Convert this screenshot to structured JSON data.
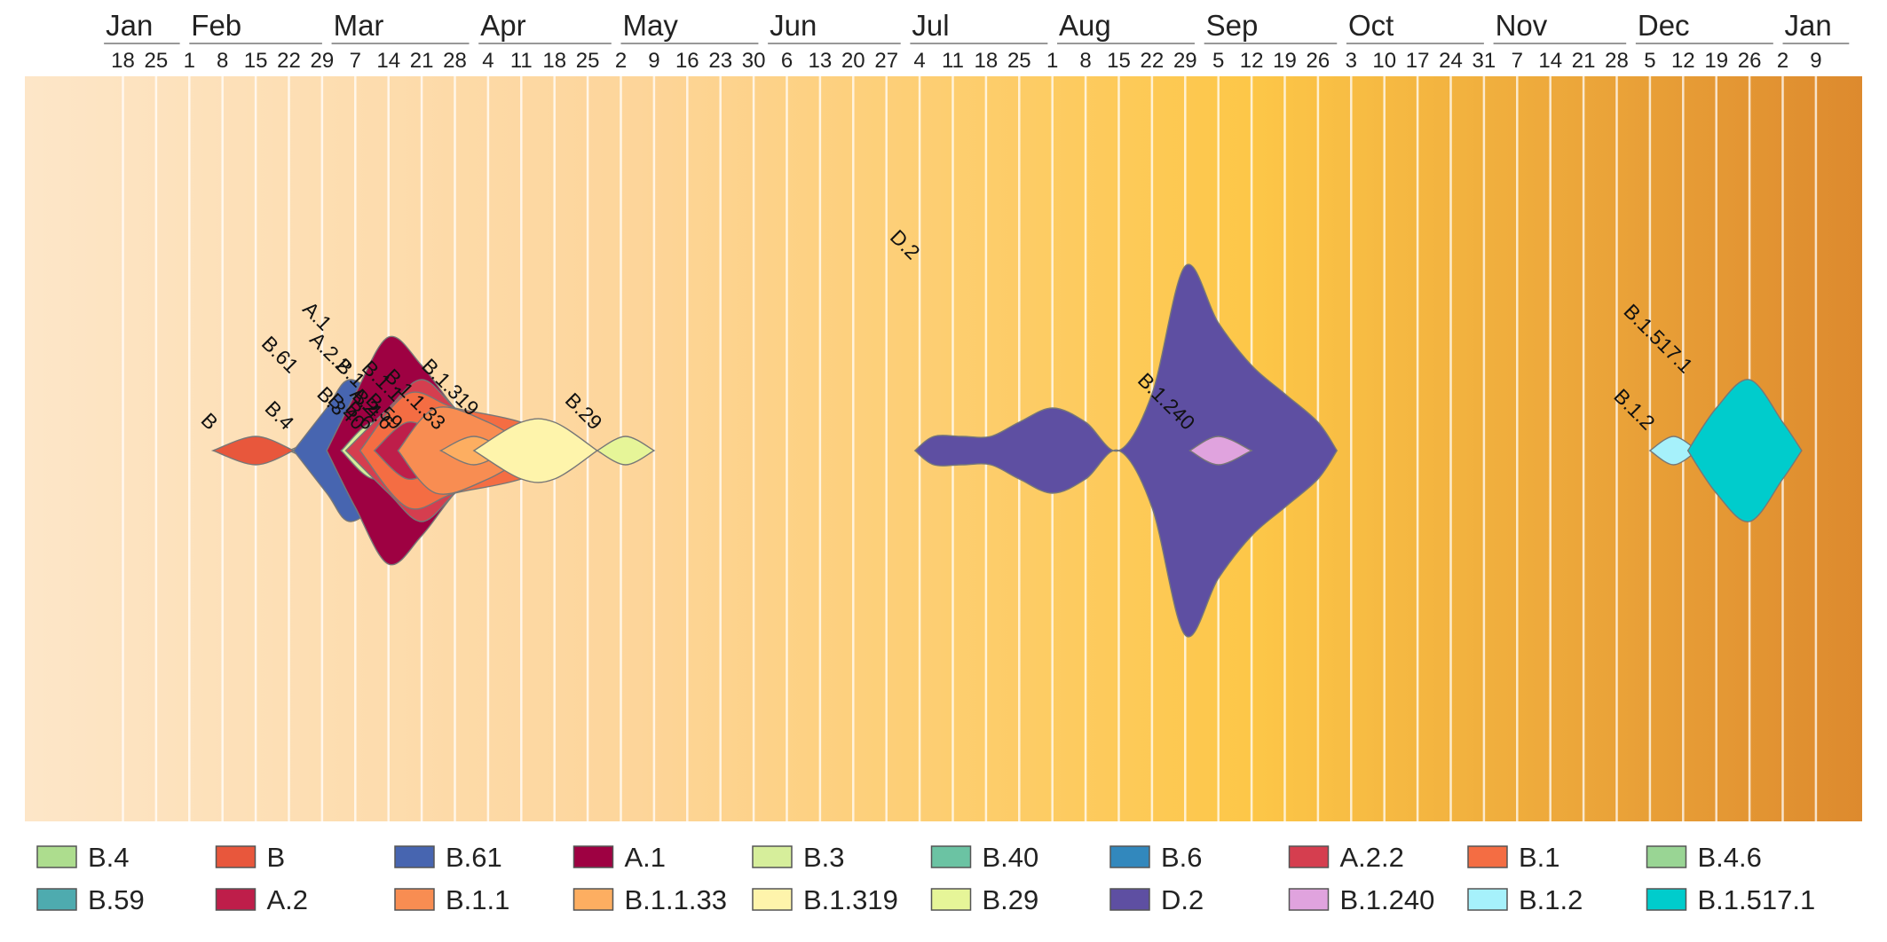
{
  "chart_data": {
    "type": "area",
    "title": "",
    "xlabel": "",
    "ylabel": "",
    "x_unit": "date",
    "x_range": [
      "2020-01-11",
      "2021-01-17"
    ],
    "grid": true,
    "legend_position": "bottom",
    "background_gradient": [
      "#fde6c8",
      "#fdd59a",
      "#fdc748",
      "#dd8a2e"
    ],
    "months": [
      {
        "label": "Jan",
        "start": "2020-01-14",
        "end": "2020-01-30"
      },
      {
        "label": "Feb",
        "start": "2020-02-01",
        "end": "2020-02-29"
      },
      {
        "label": "Mar",
        "start": "2020-03-02",
        "end": "2020-03-31"
      },
      {
        "label": "Apr",
        "start": "2020-04-02",
        "end": "2020-04-30"
      },
      {
        "label": "May",
        "start": "2020-05-02",
        "end": "2020-05-31"
      },
      {
        "label": "Jun",
        "start": "2020-06-02",
        "end": "2020-06-30"
      },
      {
        "label": "Jul",
        "start": "2020-07-02",
        "end": "2020-07-31"
      },
      {
        "label": "Aug",
        "start": "2020-08-02",
        "end": "2020-08-31"
      },
      {
        "label": "Sep",
        "start": "2020-09-02",
        "end": "2020-09-30"
      },
      {
        "label": "Oct",
        "start": "2020-10-02",
        "end": "2020-10-31"
      },
      {
        "label": "Nov",
        "start": "2020-11-02",
        "end": "2020-11-30"
      },
      {
        "label": "Dec",
        "start": "2020-12-02",
        "end": "2020-12-31"
      },
      {
        "label": "Jan",
        "start": "2021-01-02",
        "end": "2021-01-16"
      }
    ],
    "week_ticks": [
      {
        "date": "2020-01-18",
        "label": "18"
      },
      {
        "date": "2020-01-25",
        "label": "25"
      },
      {
        "date": "2020-02-01",
        "label": "1"
      },
      {
        "date": "2020-02-08",
        "label": "8"
      },
      {
        "date": "2020-02-15",
        "label": "15"
      },
      {
        "date": "2020-02-22",
        "label": "22"
      },
      {
        "date": "2020-02-29",
        "label": "29"
      },
      {
        "date": "2020-03-07",
        "label": "7"
      },
      {
        "date": "2020-03-14",
        "label": "14"
      },
      {
        "date": "2020-03-21",
        "label": "21"
      },
      {
        "date": "2020-03-28",
        "label": "28"
      },
      {
        "date": "2020-04-04",
        "label": "4"
      },
      {
        "date": "2020-04-11",
        "label": "11"
      },
      {
        "date": "2020-04-18",
        "label": "18"
      },
      {
        "date": "2020-04-25",
        "label": "25"
      },
      {
        "date": "2020-05-02",
        "label": "2"
      },
      {
        "date": "2020-05-09",
        "label": "9"
      },
      {
        "date": "2020-05-16",
        "label": "16"
      },
      {
        "date": "2020-05-23",
        "label": "23"
      },
      {
        "date": "2020-05-30",
        "label": "30"
      },
      {
        "date": "2020-06-06",
        "label": "6"
      },
      {
        "date": "2020-06-13",
        "label": "13"
      },
      {
        "date": "2020-06-20",
        "label": "20"
      },
      {
        "date": "2020-06-27",
        "label": "27"
      },
      {
        "date": "2020-07-04",
        "label": "4"
      },
      {
        "date": "2020-07-11",
        "label": "11"
      },
      {
        "date": "2020-07-18",
        "label": "18"
      },
      {
        "date": "2020-07-25",
        "label": "25"
      },
      {
        "date": "2020-08-01",
        "label": "1"
      },
      {
        "date": "2020-08-08",
        "label": "8"
      },
      {
        "date": "2020-08-15",
        "label": "15"
      },
      {
        "date": "2020-08-22",
        "label": "22"
      },
      {
        "date": "2020-08-29",
        "label": "29"
      },
      {
        "date": "2020-09-05",
        "label": "5"
      },
      {
        "date": "2020-09-12",
        "label": "12"
      },
      {
        "date": "2020-09-19",
        "label": "19"
      },
      {
        "date": "2020-09-26",
        "label": "26"
      },
      {
        "date": "2020-10-03",
        "label": "3"
      },
      {
        "date": "2020-10-10",
        "label": "10"
      },
      {
        "date": "2020-10-17",
        "label": "17"
      },
      {
        "date": "2020-10-24",
        "label": "24"
      },
      {
        "date": "2020-10-31",
        "label": "31"
      },
      {
        "date": "2020-11-07",
        "label": "7"
      },
      {
        "date": "2020-11-14",
        "label": "14"
      },
      {
        "date": "2020-11-21",
        "label": "21"
      },
      {
        "date": "2020-11-28",
        "label": "28"
      },
      {
        "date": "2020-12-05",
        "label": "5"
      },
      {
        "date": "2020-12-12",
        "label": "12"
      },
      {
        "date": "2020-12-19",
        "label": "19"
      },
      {
        "date": "2020-12-26",
        "label": "26"
      },
      {
        "date": "2021-01-02",
        "label": "2"
      },
      {
        "date": "2021-01-09",
        "label": "9"
      }
    ],
    "series": [
      {
        "name": "B.4",
        "color": "#addd8e",
        "values": [
          {
            "x": "2020-02-22",
            "y": 0
          },
          {
            "x": "2020-03-01",
            "y": 1
          },
          {
            "x": "2020-03-02",
            "y": 0
          }
        ]
      },
      {
        "name": "B",
        "color": "#e8573c",
        "values": [
          {
            "x": "2020-02-06",
            "y": 0
          },
          {
            "x": "2020-02-15",
            "y": 1
          },
          {
            "x": "2020-02-23",
            "y": 0
          }
        ]
      },
      {
        "name": "B.61",
        "color": "#4765b0",
        "values": [
          {
            "x": "2020-02-23",
            "y": 0
          },
          {
            "x": "2020-03-01",
            "y": 3
          },
          {
            "x": "2020-03-06",
            "y": 5
          },
          {
            "x": "2020-03-14",
            "y": 3
          },
          {
            "x": "2020-03-21",
            "y": 0
          }
        ]
      },
      {
        "name": "A.1",
        "color": "#9e0142",
        "values": [
          {
            "x": "2020-03-01",
            "y": 0
          },
          {
            "x": "2020-03-07",
            "y": 4
          },
          {
            "x": "2020-03-14",
            "y": 8
          },
          {
            "x": "2020-03-21",
            "y": 6
          },
          {
            "x": "2020-03-28",
            "y": 3
          },
          {
            "x": "2020-04-04",
            "y": 1
          },
          {
            "x": "2020-04-15",
            "y": 0
          }
        ]
      },
      {
        "name": "B.3",
        "color": "#d6ee9b",
        "values": [
          {
            "x": "2020-03-04",
            "y": 0
          },
          {
            "x": "2020-03-11",
            "y": 2
          },
          {
            "x": "2020-03-18",
            "y": 0
          }
        ]
      },
      {
        "name": "B.40",
        "color": "#6bc3a3",
        "values": [
          {
            "x": "2020-03-08",
            "y": 0
          },
          {
            "x": "2020-03-12",
            "y": 1
          },
          {
            "x": "2020-03-16",
            "y": 0
          }
        ]
      },
      {
        "name": "B.6",
        "color": "#3288bd",
        "values": [
          {
            "x": "2020-03-10",
            "y": 0
          },
          {
            "x": "2020-03-14",
            "y": 1
          },
          {
            "x": "2020-03-18",
            "y": 0
          }
        ]
      },
      {
        "name": "A.2.2",
        "color": "#d53e4f",
        "values": [
          {
            "x": "2020-03-05",
            "y": 0
          },
          {
            "x": "2020-03-14",
            "y": 3
          },
          {
            "x": "2020-03-21",
            "y": 5
          },
          {
            "x": "2020-03-28",
            "y": 3
          },
          {
            "x": "2020-04-04",
            "y": 1
          },
          {
            "x": "2020-04-12",
            "y": 0
          }
        ]
      },
      {
        "name": "B.1",
        "color": "#f46d43",
        "values": [
          {
            "x": "2020-03-08",
            "y": 0
          },
          {
            "x": "2020-03-18",
            "y": 4
          },
          {
            "x": "2020-03-28",
            "y": 3
          },
          {
            "x": "2020-04-11",
            "y": 2
          },
          {
            "x": "2020-04-25",
            "y": 0
          }
        ]
      },
      {
        "name": "B.4.6",
        "color": "#99d594",
        "values": [
          {
            "x": "2020-03-14",
            "y": 0
          },
          {
            "x": "2020-03-18",
            "y": 1
          },
          {
            "x": "2020-03-22",
            "y": 0
          },
          {
            "x": "2020-03-28",
            "y": 1
          },
          {
            "x": "2020-04-04",
            "y": 0
          }
        ]
      },
      {
        "name": "B.59",
        "color": "#4eabaf",
        "values": [
          {
            "x": "2020-03-16",
            "y": 0
          },
          {
            "x": "2020-03-20",
            "y": 1
          },
          {
            "x": "2020-03-24",
            "y": 0
          }
        ]
      },
      {
        "name": "A.2",
        "color": "#be1e4a",
        "values": [
          {
            "x": "2020-03-11",
            "y": 0
          },
          {
            "x": "2020-03-18",
            "y": 2
          },
          {
            "x": "2020-03-25",
            "y": 1
          },
          {
            "x": "2020-04-02",
            "y": 0
          }
        ]
      },
      {
        "name": "B.1.1",
        "color": "#f88d52",
        "values": [
          {
            "x": "2020-03-16",
            "y": 0
          },
          {
            "x": "2020-03-24",
            "y": 3
          },
          {
            "x": "2020-04-04",
            "y": 2
          },
          {
            "x": "2020-04-14",
            "y": 0
          }
        ]
      },
      {
        "name": "B.1.1.33",
        "color": "#fdae61",
        "values": [
          {
            "x": "2020-03-25",
            "y": 0
          },
          {
            "x": "2020-04-01",
            "y": 1
          },
          {
            "x": "2020-04-08",
            "y": 0
          }
        ]
      },
      {
        "name": "B.1.319",
        "color": "#fef4ab",
        "values": [
          {
            "x": "2020-04-01",
            "y": 0
          },
          {
            "x": "2020-04-11",
            "y": 2
          },
          {
            "x": "2020-04-18",
            "y": 2
          },
          {
            "x": "2020-04-27",
            "y": 0
          }
        ]
      },
      {
        "name": "B.29",
        "color": "#e6f598",
        "values": [
          {
            "x": "2020-04-27",
            "y": 0
          },
          {
            "x": "2020-05-03",
            "y": 1
          },
          {
            "x": "2020-05-09",
            "y": 0
          }
        ]
      },
      {
        "name": "D.2",
        "color": "#5e4fa2",
        "values": [
          {
            "x": "2020-07-03",
            "y": 0
          },
          {
            "x": "2020-07-07",
            "y": 1
          },
          {
            "x": "2020-07-13",
            "y": 1
          },
          {
            "x": "2020-07-19",
            "y": 1
          },
          {
            "x": "2020-07-25",
            "y": 2
          },
          {
            "x": "2020-08-01",
            "y": 3
          },
          {
            "x": "2020-08-08",
            "y": 2
          },
          {
            "x": "2020-08-15",
            "y": 0
          },
          {
            "x": "2020-08-22",
            "y": 4
          },
          {
            "x": "2020-08-29",
            "y": 13
          },
          {
            "x": "2020-09-05",
            "y": 9
          },
          {
            "x": "2020-09-12",
            "y": 6
          },
          {
            "x": "2020-09-19",
            "y": 4
          },
          {
            "x": "2020-09-26",
            "y": 2
          },
          {
            "x": "2020-09-30",
            "y": 0
          }
        ]
      },
      {
        "name": "B.1.240",
        "color": "#e0a3de",
        "values": [
          {
            "x": "2020-08-30",
            "y": 0
          },
          {
            "x": "2020-09-05",
            "y": 1
          },
          {
            "x": "2020-09-12",
            "y": 0
          }
        ]
      },
      {
        "name": "B.1.2",
        "color": "#a6f1fb",
        "values": [
          {
            "x": "2020-12-05",
            "y": 0
          },
          {
            "x": "2020-12-10",
            "y": 1
          },
          {
            "x": "2020-12-15",
            "y": 0
          }
        ]
      },
      {
        "name": "B.1.517.1",
        "color": "#00cccc",
        "values": [
          {
            "x": "2020-12-13",
            "y": 0
          },
          {
            "x": "2020-12-19",
            "y": 3
          },
          {
            "x": "2020-12-26",
            "y": 5
          },
          {
            "x": "2021-01-02",
            "y": 2
          },
          {
            "x": "2021-01-06",
            "y": 0
          }
        ]
      }
    ]
  }
}
